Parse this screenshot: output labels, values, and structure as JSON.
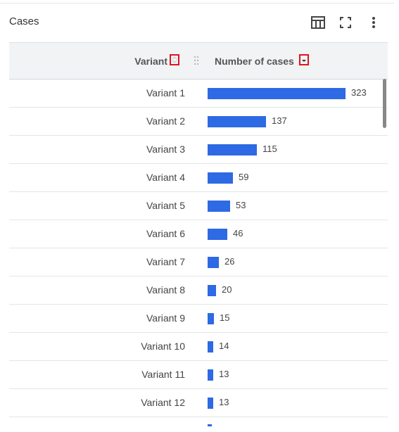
{
  "widget": {
    "title": "Cases"
  },
  "columns": {
    "variant": "Variant",
    "cases": "Number of cases"
  },
  "icons": {
    "table_view": "table-icon",
    "fullscreen": "fullscreen-icon",
    "more": "more-vertical-icon"
  },
  "colors": {
    "bar": "#2d6ae3",
    "highlight": "#e0141e"
  },
  "max_value": 323,
  "rows": [
    {
      "variant": "Variant 1",
      "cases": 323
    },
    {
      "variant": "Variant 2",
      "cases": 137
    },
    {
      "variant": "Variant 3",
      "cases": 115
    },
    {
      "variant": "Variant 4",
      "cases": 59
    },
    {
      "variant": "Variant 5",
      "cases": 53
    },
    {
      "variant": "Variant 6",
      "cases": 46
    },
    {
      "variant": "Variant 7",
      "cases": 26
    },
    {
      "variant": "Variant 8",
      "cases": 20
    },
    {
      "variant": "Variant 9",
      "cases": 15
    },
    {
      "variant": "Variant 10",
      "cases": 14
    },
    {
      "variant": "Variant 11",
      "cases": 13
    },
    {
      "variant": "Variant 12",
      "cases": 13
    }
  ]
}
